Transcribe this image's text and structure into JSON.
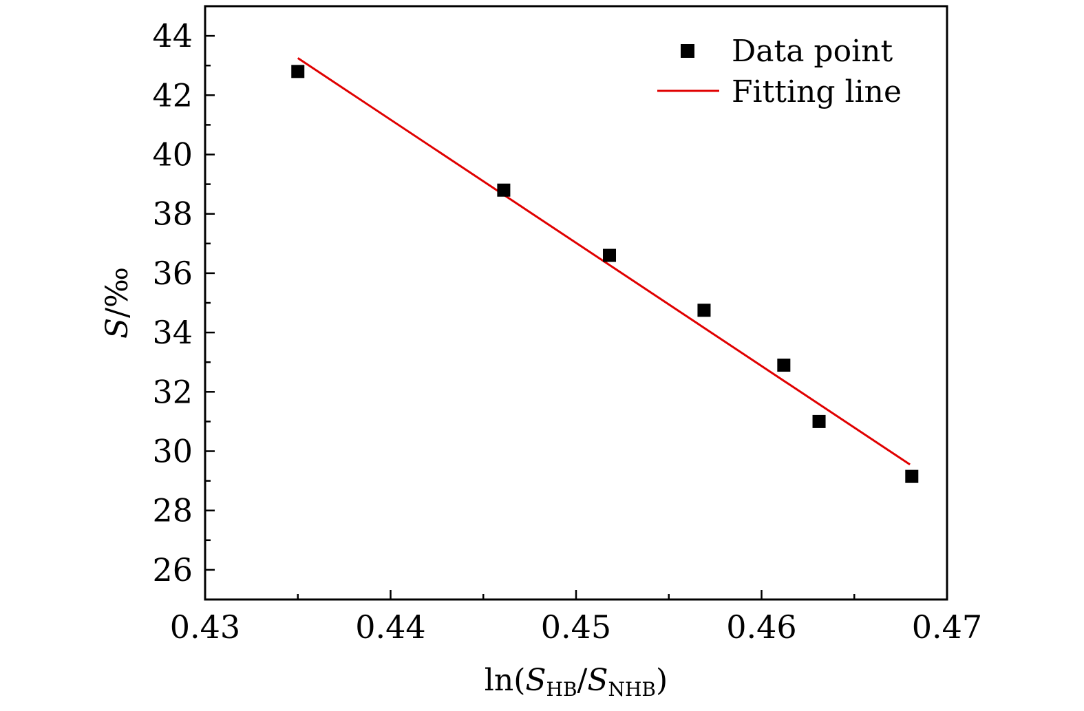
{
  "chart_data": {
    "type": "scatter",
    "title": "",
    "xlabel": {
      "prefix": "ln(",
      "s1": "S",
      "sub1": "HB",
      "slash": "/",
      "s2": "S",
      "sub2": "NHB",
      "suffix": ")"
    },
    "ylabel": {
      "symbol": "S",
      "unit": "/‰"
    },
    "xlim": [
      0.43,
      0.47
    ],
    "ylim": [
      25,
      45
    ],
    "x_ticks": [
      0.43,
      0.44,
      0.45,
      0.46,
      0.47
    ],
    "x_tick_labels": [
      "0.43",
      "0.44",
      "0.45",
      "0.46",
      "0.47"
    ],
    "y_ticks": [
      26,
      28,
      30,
      32,
      34,
      36,
      38,
      40,
      42,
      44
    ],
    "y_tick_labels": [
      "26",
      "28",
      "30",
      "32",
      "34",
      "36",
      "38",
      "40",
      "42",
      "44"
    ],
    "grid": false,
    "legend_position": "top-right",
    "series": [
      {
        "name": "Data point",
        "kind": "scatter",
        "marker": "square",
        "color": "#000000",
        "x": [
          0.435,
          0.4461,
          0.4518,
          0.4569,
          0.4612,
          0.4631,
          0.4681
        ],
        "y": [
          42.8,
          38.8,
          36.6,
          34.75,
          32.9,
          31.0,
          29.15
        ]
      },
      {
        "name": "Fitting line",
        "kind": "line",
        "color": "#e00000",
        "x": [
          0.435,
          0.468
        ],
        "y": [
          43.25,
          29.55
        ]
      }
    ]
  }
}
